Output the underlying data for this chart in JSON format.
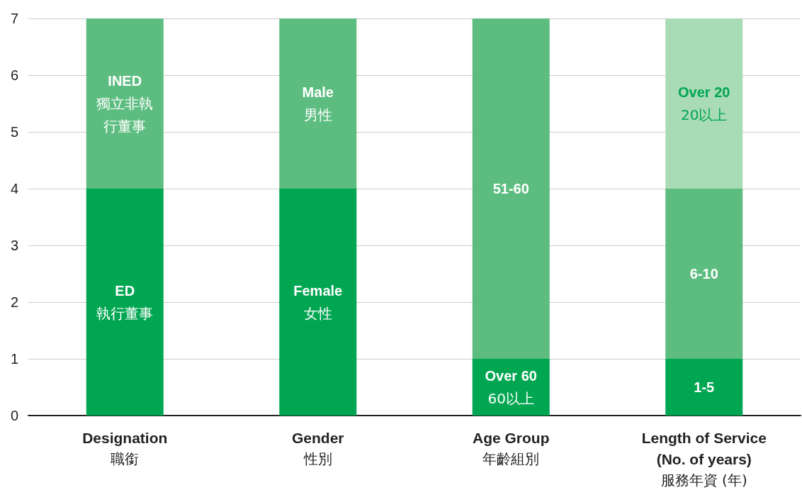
{
  "chart_data": {
    "type": "bar",
    "stacked": true,
    "categories": [
      "Designation\n職銜",
      "Gender\n性別",
      "Age Group\n年齡組別",
      "Length of Service\n(No. of years)\n服務年資 (年)"
    ],
    "series": [
      {
        "color": "#00a651",
        "values": [
          4,
          4,
          1,
          1
        ],
        "value_labels": [
          "ED\n執行董事",
          "Female\n女性",
          "Over 60\n60以上",
          "1-5"
        ]
      },
      {
        "color": "#5dbd80",
        "values": [
          3,
          3,
          6,
          3
        ],
        "value_labels": [
          "INED\n獨立非執行董事",
          "Male\n男性",
          "51-60",
          "6-10"
        ]
      },
      {
        "color": "#a9dbb6",
        "values": [
          null,
          null,
          null,
          3
        ],
        "value_labels": [
          null,
          null,
          null,
          "Over 20\n20以上"
        ]
      }
    ],
    "ylim": [
      0,
      7
    ],
    "yticks": [
      0,
      1,
      2,
      3,
      4,
      5,
      6,
      7
    ],
    "grid": "y"
  }
}
